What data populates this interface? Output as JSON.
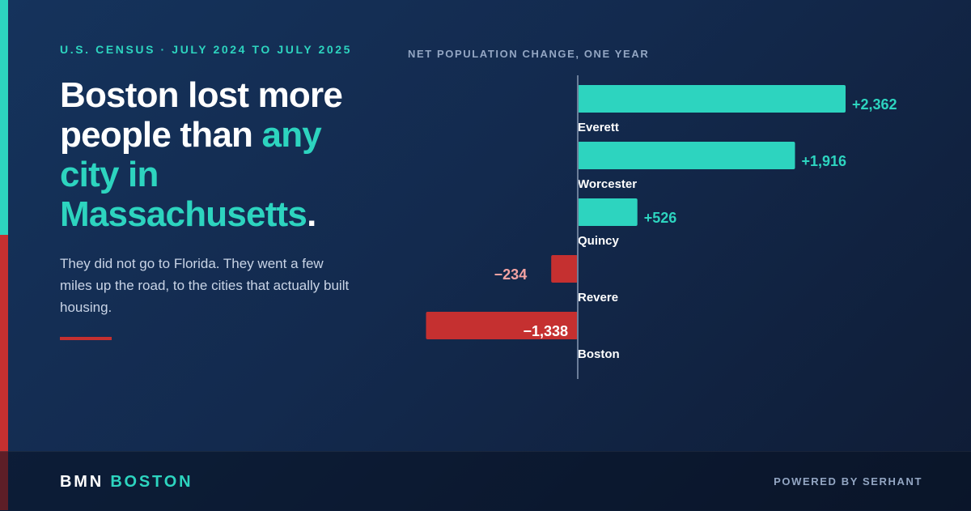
{
  "kicker": "U.S. CENSUS · JULY 2024 TO JULY 2025",
  "headline": {
    "part1": "Boston lost more people than ",
    "highlight": "any city in Massachusetts",
    "end": "."
  },
  "subtext": "They did not go to Florida. They went a few miles up the road, to the cities that actually built housing.",
  "footer": {
    "brand_primary": "BMN",
    "brand_accent": "BOSTON",
    "powered_by": "POWERED BY SERHANT"
  },
  "colors": {
    "positive": "#2dd4bf",
    "negative": "#c53030",
    "negative_label": "#f4a3a3",
    "axis": "#6b7d99"
  },
  "chart_data": {
    "type": "bar",
    "orientation": "horizontal",
    "title": "NET POPULATION CHANGE, ONE YEAR",
    "categories": [
      "Everett",
      "Worcester",
      "Quincy",
      "Revere",
      "Boston"
    ],
    "values": [
      2362,
      1916,
      526,
      -234,
      -1338
    ],
    "value_labels": [
      "+2,362",
      "+1,916",
      "+526",
      "−234",
      "−1,338"
    ],
    "xlim": [
      -1338,
      2362
    ],
    "grid": false,
    "legend": "none"
  }
}
